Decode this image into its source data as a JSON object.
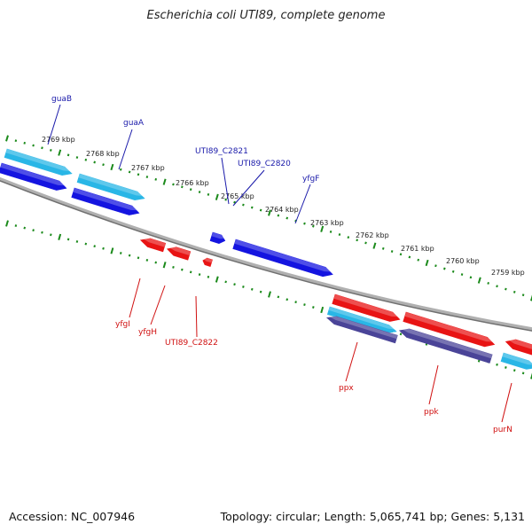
{
  "title": "Escherichia coli UTI89, complete genome",
  "footer": {
    "accession": "Accession: NC_007946",
    "summary": "Topology: circular; Length: 5,065,741 bp; Genes: 5,131"
  },
  "colors": {
    "backbone": "#8a8a8a",
    "forward_gene": "#1414e0",
    "reverse_gene": "#e81414",
    "forward_cds": "#29b6e6",
    "reverse_cds": "#4a4498",
    "tick": "#1b8a1b",
    "forward_label": "#1a1aaa",
    "reverse_label": "#d01010"
  },
  "ticks": [
    {
      "label": "2769 kbp"
    },
    {
      "label": "2768 kbp"
    },
    {
      "label": "2767 kbp"
    },
    {
      "label": "2766 kbp"
    },
    {
      "label": "2765 kbp"
    },
    {
      "label": "2764 kbp"
    },
    {
      "label": "2763 kbp"
    },
    {
      "label": "2762 kbp"
    },
    {
      "label": "2761 kbp"
    },
    {
      "label": "2760 kbp"
    },
    {
      "label": "2759 kbp"
    }
  ],
  "forward_genes": [
    {
      "name": "guaB"
    },
    {
      "name": "guaA"
    },
    {
      "name": "UTI89_C2821"
    },
    {
      "name": "UTI89_C2820"
    },
    {
      "name": "yfgF"
    }
  ],
  "reverse_genes": [
    {
      "name": "yfgI"
    },
    {
      "name": "yfgH"
    },
    {
      "name": "UTI89_C2822"
    },
    {
      "name": "ppx"
    },
    {
      "name": "ppk"
    },
    {
      "name": "purN"
    }
  ]
}
